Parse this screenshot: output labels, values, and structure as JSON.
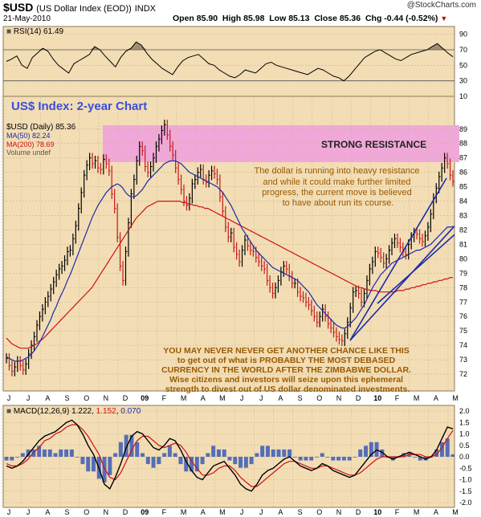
{
  "header": {
    "ticker": "$USD",
    "name": "(US Dollar Index (EOD))",
    "exchange": "INDX",
    "watermark": "@StockCharts.com",
    "date": "21-May-2010",
    "open_label": "Open",
    "open": "85.90",
    "high_label": "High",
    "high": "85.98",
    "low_label": "Low",
    "low": "85.13",
    "close_label": "Close",
    "close": "85.36",
    "chg_label": "Chg",
    "chg": "-0.44 (-0.52%)"
  },
  "colors": {
    "panel_bg": "#f2ddb5",
    "grid": "#c9b48f",
    "resistance": "#f0a8d8",
    "up": "#000000",
    "down": "#c81818",
    "ma50": "#1a2aa8",
    "ma200": "#d01010",
    "trend": "#1a2aa8",
    "annotation": "#9a5a00",
    "title_text": "#3b4fd8"
  },
  "x_ticks": [
    "J",
    "J",
    "A",
    "S",
    "O",
    "N",
    "D",
    "09",
    "F",
    "M",
    "A",
    "M",
    "J",
    "J",
    "A",
    "S",
    "O",
    "N",
    "D",
    "10",
    "F",
    "M",
    "A",
    "M"
  ],
  "rsi_panel": {
    "legend": "RSI(14) 61.49",
    "y_ticks": [
      "90",
      "70",
      "50",
      "30",
      "10"
    ],
    "levels": [
      70,
      30
    ]
  },
  "price_panel": {
    "chart_title": "US$ Index: 2-year Chart",
    "legend_title": "$USD (Daily) 85.36",
    "legend_ma50": "MA(50) 82.24",
    "legend_ma200": "MA(200) 78.69",
    "legend_volume": "Volume undef",
    "resistance_label": "STRONG RESISTANCE",
    "note_upper": [
      "The dollar is running into heavy resistance",
      "and while it could make further limited",
      "progress, the current move is believed",
      "to have about run its course."
    ],
    "note_lower": [
      "YOU MAY NEVER NEVER GET ANOTHER CHANCE LIKE THIS",
      "to get out of what is PROBABLY THE MOST DEBASED",
      "CURRENCY IN THE WORLD AFTER THE ZIMBABWE DOLLAR.",
      "Wise citizens and investors will seize upon this ephemeral",
      "strength to divest out of US dollar denominated investments."
    ],
    "y_ticks": [
      "89",
      "88",
      "87",
      "86",
      "85",
      "84",
      "83",
      "82",
      "81",
      "80",
      "79",
      "78",
      "77",
      "76",
      "75",
      "74",
      "73",
      "72"
    ]
  },
  "macd_panel": {
    "legend_a": "MACD(12,26,9)",
    "legend_b": "1.222",
    "legend_c": "1.152",
    "legend_d": "0.070",
    "y_ticks": [
      "2.0",
      "1.5",
      "1.0",
      "0.5",
      "0.0",
      "-0.5",
      "-1.0",
      "-1.5",
      "-2.0"
    ]
  },
  "chart_data": [
    {
      "type": "line",
      "title": "RSI(14) 61.49",
      "ylim": [
        10,
        100
      ],
      "series": [
        {
          "name": "RSI(14)",
          "values": [
            55,
            58,
            62,
            50,
            46,
            60,
            66,
            72,
            68,
            58,
            50,
            45,
            40,
            52,
            56,
            60,
            64,
            74,
            70,
            62,
            55,
            48,
            60,
            68,
            72,
            80,
            76,
            66,
            58,
            52,
            46,
            42,
            38,
            48,
            56,
            60,
            62,
            64,
            58,
            52,
            50,
            44,
            40,
            36,
            34,
            38,
            44,
            42,
            40,
            46,
            52,
            54,
            50,
            48,
            46,
            44,
            42,
            40,
            38,
            42,
            46,
            44,
            40,
            36,
            34,
            30,
            36,
            44,
            52,
            60,
            64,
            68,
            70,
            66,
            62,
            58,
            56,
            60,
            64,
            66,
            68,
            70,
            74,
            78,
            72,
            66,
            61
          ]
        }
      ]
    },
    {
      "type": "line",
      "title": "$USD (Daily) 85.36",
      "ylim": [
        71,
        89.6
      ],
      "series": [
        {
          "name": "$USD (Daily)",
          "values": [
            73.1,
            72.6,
            72.2,
            72.5,
            72.9,
            72.6,
            72.3,
            72.7,
            73.4,
            74.0,
            74.6,
            75.4,
            76.0,
            76.5,
            77.0,
            77.4,
            77.9,
            78.4,
            78.9,
            79.3,
            79.5,
            79.9,
            80.5,
            80.6,
            81.4,
            82.3,
            83.5,
            84.6,
            85.8,
            86.5,
            87.0,
            86.6,
            86.8,
            86.3,
            86.2,
            86.9,
            86.6,
            86.1,
            84.5,
            83.5,
            81.5,
            79.5,
            78.5,
            80.5,
            82.5,
            84.5,
            85.5,
            86.8,
            87.8,
            87.5,
            86.4,
            86.0,
            86.4,
            87.0,
            87.8,
            88.3,
            88.9,
            89.3,
            88.6,
            87.8,
            87.2,
            86.3,
            85.5,
            84.8,
            84.0,
            83.7,
            84.2,
            85.2,
            85.5,
            86.0,
            86.2,
            85.5,
            85.3,
            85.8,
            86.1,
            85.9,
            85.5,
            84.3,
            83.3,
            82.2,
            81.5,
            81.8,
            80.8,
            80.3,
            79.8,
            80.6,
            81.3,
            80.9,
            80.6,
            80.5,
            80.1,
            79.8,
            79.5,
            79.3,
            78.5,
            78.0,
            77.6,
            78.0,
            78.5,
            79.1,
            79.5,
            79.3,
            78.8,
            78.3,
            78.3,
            77.7,
            77.4,
            77.3,
            77.0,
            76.8,
            76.4,
            76.0,
            75.6,
            76.0,
            76.5,
            76.0,
            75.5,
            75.2,
            74.9,
            74.6,
            74.4,
            74.3,
            74.8,
            75.6,
            76.6,
            77.7,
            77.8,
            77.6,
            77.0,
            77.6,
            78.5,
            79.3,
            79.8,
            80.5,
            80.4,
            80.1,
            79.7,
            80.0,
            80.6,
            81.1,
            81.4,
            81.1,
            80.8,
            80.5,
            80.3,
            81.0,
            81.5,
            81.8,
            81.7,
            81.4,
            81.2,
            81.6,
            82.2,
            83.1,
            84.2,
            84.9,
            85.7,
            86.3,
            87.0,
            86.6,
            85.8,
            85.36
          ]
        },
        {
          "name": "MA(50) 82.24",
          "values": [
            73.2,
            73.1,
            73.0,
            72.9,
            72.9,
            72.9,
            73.0,
            73.1,
            73.2,
            73.4,
            73.6,
            73.9,
            74.2,
            74.6,
            75.0,
            75.4,
            75.8,
            76.3,
            76.7,
            77.2,
            77.6,
            78.0,
            78.5,
            78.9,
            79.4,
            79.9,
            80.4,
            80.9,
            81.4,
            81.9,
            82.4,
            82.9,
            83.3,
            83.7,
            84.0,
            84.3,
            84.6,
            84.8,
            85.0,
            85.1,
            85.2,
            85.1,
            84.9,
            84.6,
            84.4,
            84.3,
            84.3,
            84.4,
            84.6,
            84.8,
            85.1,
            85.4,
            85.6,
            85.8,
            86.0,
            86.2,
            86.4,
            86.6,
            86.7,
            86.8,
            86.8,
            86.8,
            86.7,
            86.6,
            86.4,
            86.2,
            86.0,
            85.9,
            85.8,
            85.7,
            85.6,
            85.5,
            85.4,
            85.3,
            85.2,
            85.1,
            85.0,
            84.8,
            84.6,
            84.3,
            84.0,
            83.7,
            83.3,
            82.9,
            82.5,
            82.1,
            81.8,
            81.5,
            81.2,
            80.9,
            80.6,
            80.4,
            80.2,
            80.0,
            79.8,
            79.6,
            79.4,
            79.3,
            79.2,
            79.1,
            79.0,
            78.9,
            78.8,
            78.7,
            78.6,
            78.5,
            78.3,
            78.1,
            77.9,
            77.7,
            77.4,
            77.1,
            76.8,
            76.6,
            76.4,
            76.2,
            76.0,
            75.8,
            75.6,
            75.4,
            75.3,
            75.2,
            75.2,
            75.3,
            75.5,
            75.7,
            75.9,
            76.2,
            76.5,
            76.8,
            77.2,
            77.6,
            78.0,
            78.3,
            78.6,
            78.9,
            79.1,
            79.3,
            79.5,
            79.7,
            79.8,
            79.9,
            80.0,
            80.1,
            80.2,
            80.3,
            80.4,
            80.5,
            80.6,
            80.6,
            80.7,
            80.8,
            80.9,
            81.0,
            81.2,
            81.4,
            81.6,
            81.8,
            82.0,
            82.2,
            82.2,
            82.24
          ]
        },
        {
          "name": "MA(200) 78.69",
          "values": [
            74.5,
            74.3,
            74.1,
            74.0,
            73.9,
            73.8,
            73.8,
            73.8,
            73.8,
            73.9,
            74.0,
            74.1,
            74.3,
            74.4,
            74.6,
            74.8,
            75.0,
            75.2,
            75.4,
            75.6,
            75.8,
            76.0,
            76.2,
            76.4,
            76.6,
            76.8,
            77.0,
            77.2,
            77.4,
            77.6,
            77.8,
            78.0,
            78.3,
            78.6,
            78.9,
            79.2,
            79.5,
            79.8,
            80.1,
            80.4,
            80.7,
            81.0,
            81.3,
            81.6,
            81.9,
            82.2,
            82.5,
            82.8,
            83.0,
            83.2,
            83.4,
            83.6,
            83.7,
            83.8,
            83.9,
            84.0,
            84.0,
            84.0,
            84.0,
            84.0,
            84.0,
            84.0,
            84.0,
            84.0,
            83.9,
            83.9,
            83.8,
            83.8,
            83.7,
            83.7,
            83.6,
            83.6,
            83.5,
            83.5,
            83.4,
            83.3,
            83.2,
            83.1,
            83.0,
            82.9,
            82.8,
            82.7,
            82.6,
            82.5,
            82.4,
            82.3,
            82.2,
            82.1,
            82.0,
            81.9,
            81.8,
            81.7,
            81.6,
            81.5,
            81.4,
            81.3,
            81.2,
            81.1,
            81.0,
            80.9,
            80.8,
            80.7,
            80.6,
            80.5,
            80.4,
            80.3,
            80.2,
            80.1,
            80.0,
            79.9,
            79.8,
            79.7,
            79.6,
            79.5,
            79.4,
            79.3,
            79.2,
            79.1,
            79.0,
            78.9,
            78.8,
            78.7,
            78.6,
            78.5,
            78.4,
            78.3,
            78.2,
            78.1,
            78.0,
            78.0,
            77.9,
            77.9,
            77.8,
            77.8,
            77.8,
            77.7,
            77.7,
            77.7,
            77.7,
            77.7,
            77.7,
            77.7,
            77.8,
            77.8,
            77.8,
            77.9,
            77.9,
            78.0,
            78.0,
            78.1,
            78.1,
            78.2,
            78.2,
            78.3,
            78.3,
            78.4,
            78.4,
            78.5,
            78.5,
            78.6,
            78.6,
            78.7,
            78.69
          ]
        }
      ]
    },
    {
      "type": "line",
      "title": "MACD(12,26,9)",
      "ylim": [
        -2.0,
        2.0
      ],
      "series": [
        {
          "name": "MACD",
          "values": [
            -0.4,
            -0.5,
            -0.4,
            -0.2,
            0.1,
            0.4,
            0.7,
            0.9,
            1.0,
            1.1,
            1.3,
            1.5,
            1.6,
            1.4,
            1.0,
            0.5,
            0.1,
            -0.5,
            -1.2,
            -1.4,
            -0.9,
            -0.3,
            0.4,
            0.9,
            1.1,
            1.0,
            0.7,
            0.4,
            0.3,
            0.5,
            0.8,
            0.7,
            0.3,
            -0.2,
            -0.6,
            -0.9,
            -1.0,
            -0.7,
            -0.4,
            -0.3,
            -0.2,
            -0.5,
            -0.8,
            -1.2,
            -1.4,
            -1.5,
            -1.2,
            -0.8,
            -0.6,
            -0.5,
            -0.3,
            -0.1,
            0.0,
            -0.2,
            -0.4,
            -0.5,
            -0.6,
            -0.5,
            -0.3,
            -0.4,
            -0.6,
            -0.7,
            -0.8,
            -0.9,
            -0.8,
            -0.5,
            -0.2,
            0.1,
            0.3,
            0.2,
            0.0,
            -0.1,
            0.0,
            0.1,
            0.2,
            0.1,
            0.0,
            -0.1,
            0.0,
            0.3,
            0.8,
            1.3,
            1.22
          ]
        },
        {
          "name": "Signal",
          "values": [
            -0.3,
            -0.4,
            -0.4,
            -0.3,
            -0.1,
            0.2,
            0.4,
            0.7,
            0.8,
            1.0,
            1.1,
            1.3,
            1.4,
            1.4,
            1.2,
            0.9,
            0.5,
            0.1,
            -0.5,
            -0.9,
            -1.0,
            -0.7,
            -0.2,
            0.3,
            0.7,
            0.9,
            0.9,
            0.7,
            0.5,
            0.4,
            0.5,
            0.6,
            0.5,
            0.2,
            -0.2,
            -0.5,
            -0.8,
            -0.8,
            -0.7,
            -0.5,
            -0.4,
            -0.4,
            -0.6,
            -0.9,
            -1.1,
            -1.3,
            -1.3,
            -1.1,
            -0.9,
            -0.7,
            -0.5,
            -0.3,
            -0.2,
            -0.2,
            -0.3,
            -0.4,
            -0.5,
            -0.5,
            -0.4,
            -0.4,
            -0.5,
            -0.6,
            -0.7,
            -0.8,
            -0.8,
            -0.7,
            -0.5,
            -0.3,
            -0.1,
            0.0,
            0.0,
            0.0,
            0.0,
            0.0,
            0.1,
            0.1,
            0.1,
            0.0,
            0.0,
            0.1,
            0.4,
            0.8,
            1.152
          ]
        }
      ]
    }
  ]
}
